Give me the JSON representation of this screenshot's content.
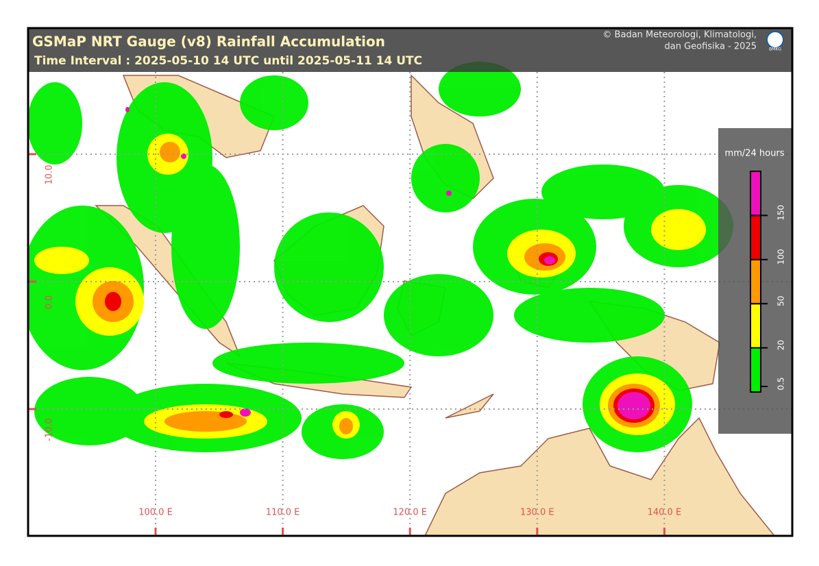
{
  "header": {
    "title": "GSMaP NRT Gauge (v8) Rainfall Accumulation",
    "subtitle": "Time Interval : 2025-05-10 14 UTC until 2025-05-11 14 UTC",
    "credit": [
      "© Badan Meteorologi, Klimatologi,",
      "dan Geofisika -  2025"
    ],
    "logo": "BMKG"
  },
  "grid": {
    "lon": [
      {
        "value": 100,
        "label": "100.0 E"
      },
      {
        "value": 110,
        "label": "110.0 E"
      },
      {
        "value": 120,
        "label": "120.0 E"
      },
      {
        "value": 130,
        "label": "130.0 E"
      },
      {
        "value": 140,
        "label": "140.0 E"
      }
    ],
    "lat": [
      {
        "value": 10,
        "label": "10.0"
      },
      {
        "value": 0,
        "label": "0.0"
      },
      {
        "value": -10,
        "label": "-10.0"
      }
    ]
  },
  "legend": {
    "unit": "mm/24 hours",
    "ticks": [
      0.5,
      20,
      50,
      100,
      150
    ],
    "colors": [
      "#00ee00",
      "#ffff00",
      "#ff9900",
      "#ee0000",
      "#ee11bb"
    ]
  }
}
